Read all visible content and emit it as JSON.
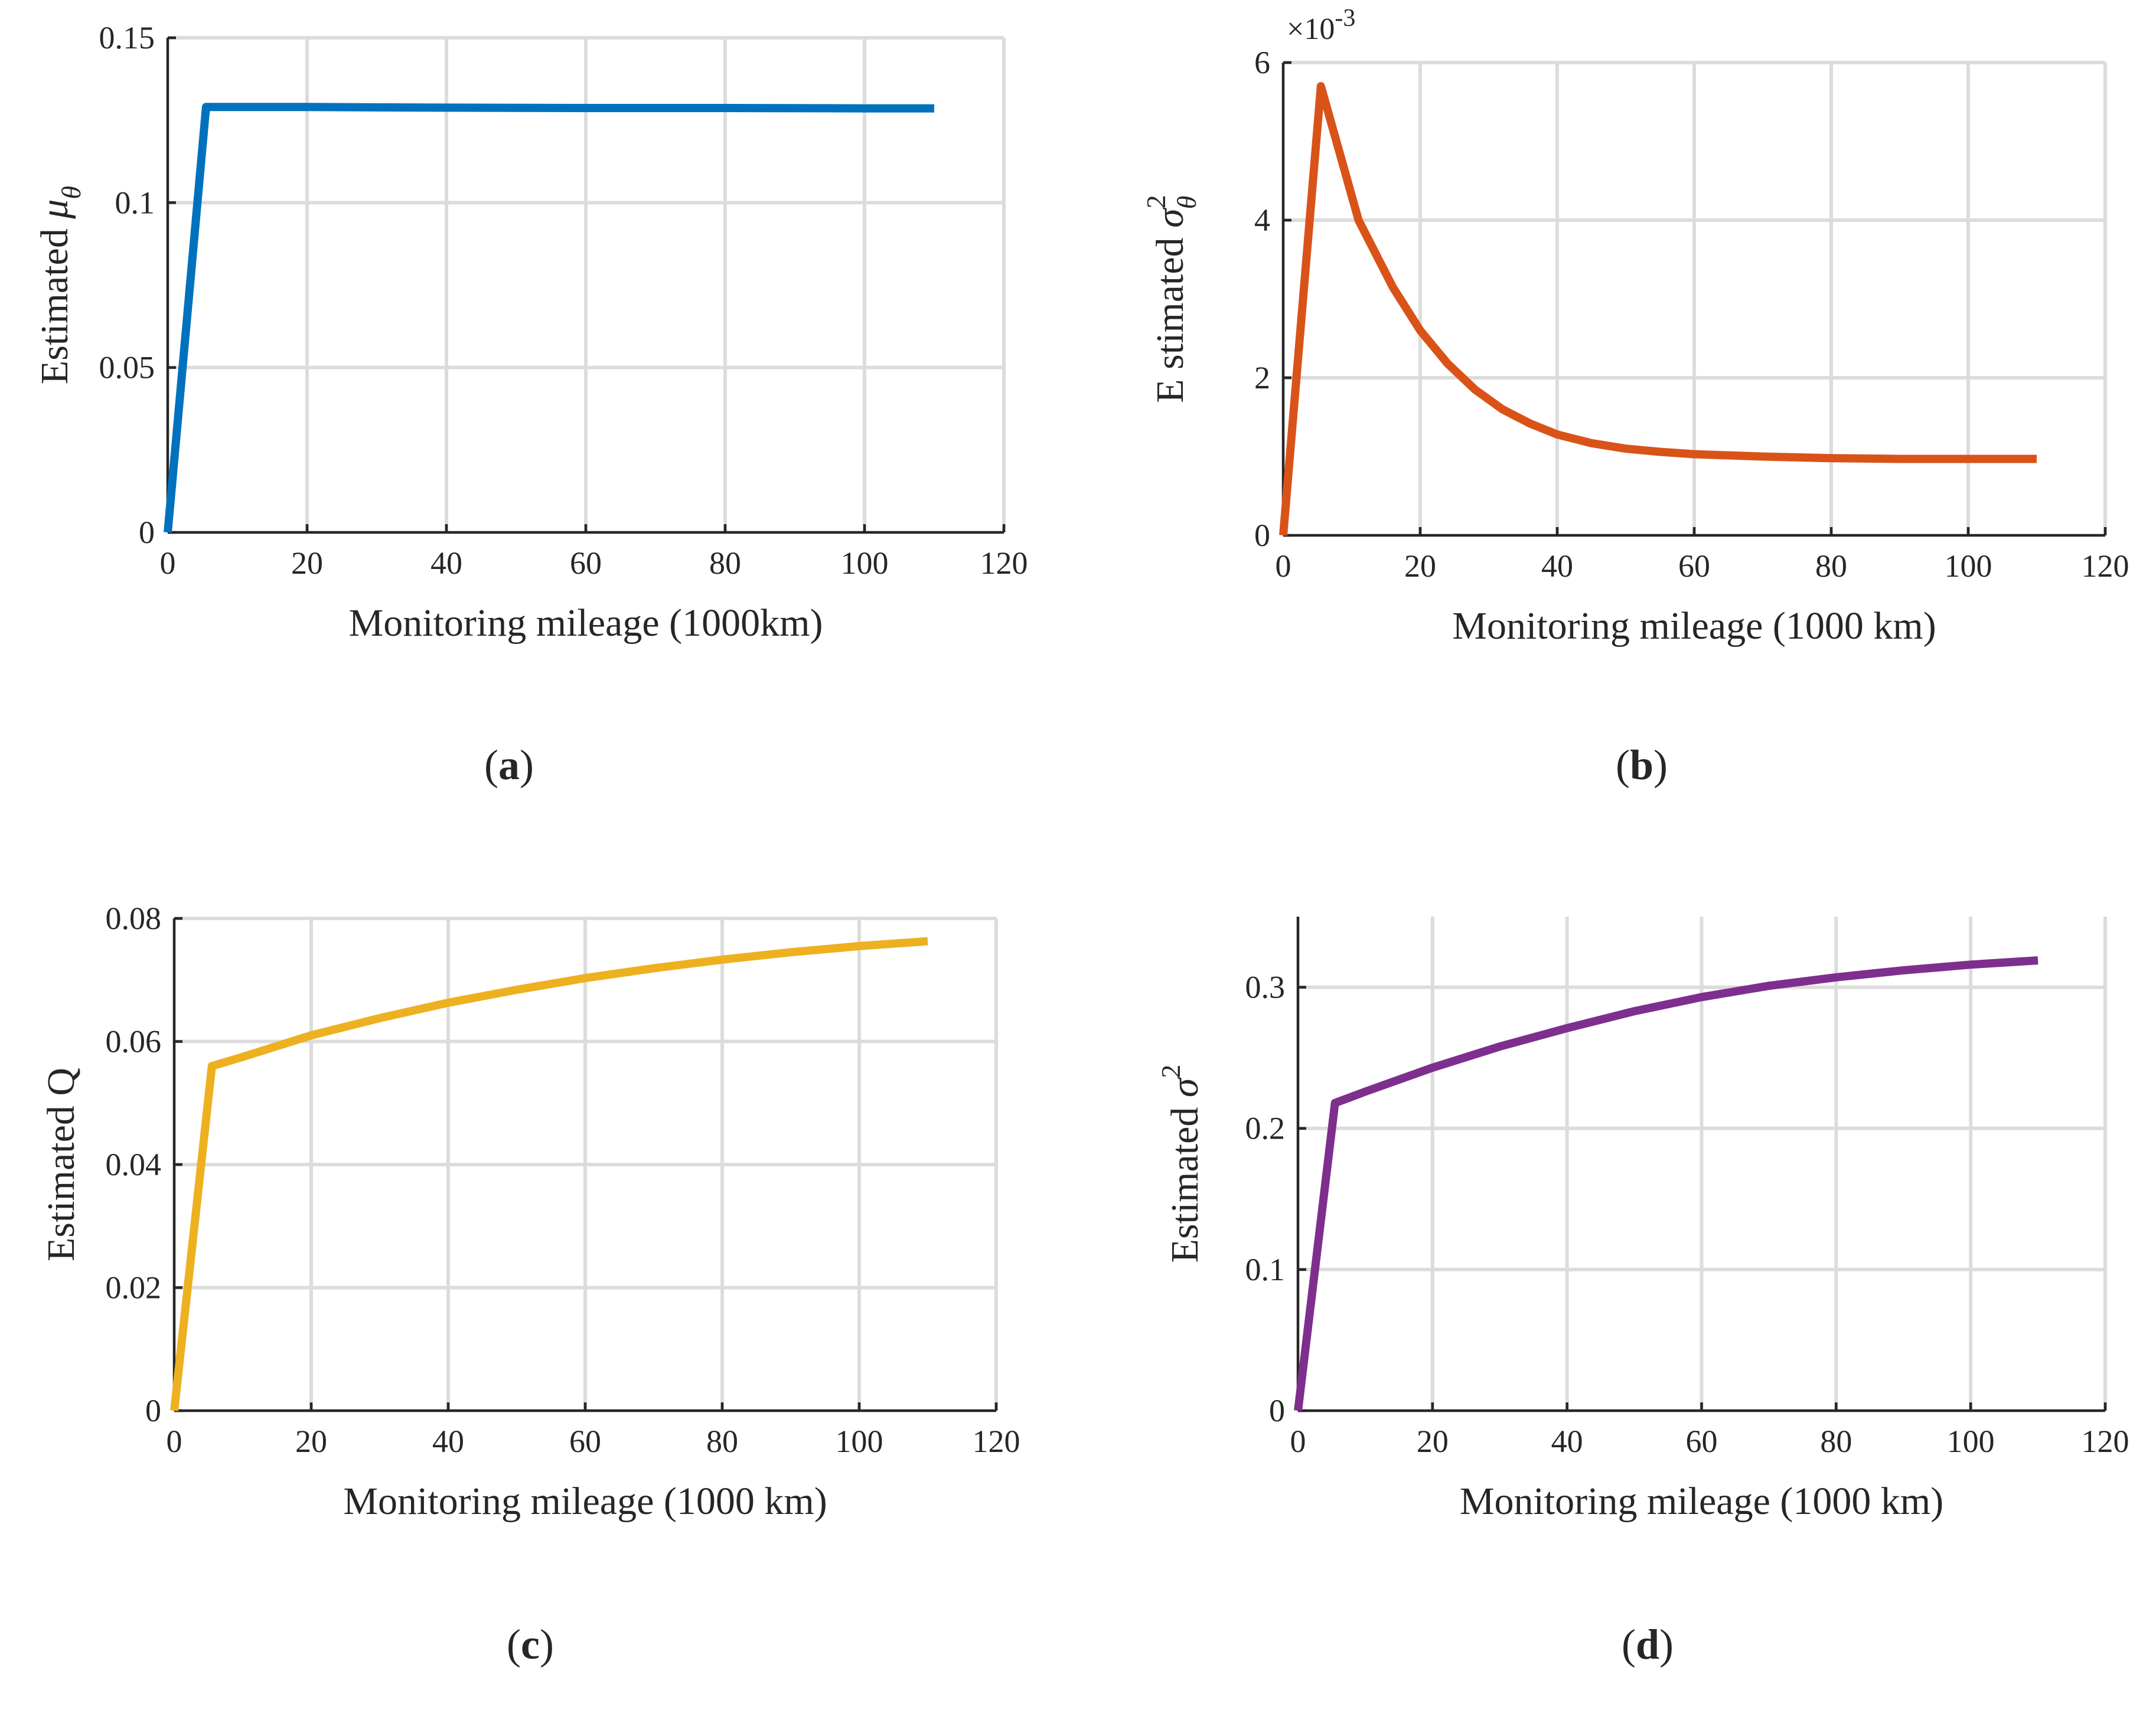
{
  "chart_data": [
    {
      "id": "a",
      "type": "line",
      "caption_letter": "a",
      "xlabel": "Monitoring mileage (1000km)",
      "ylabel_prefix": "Estimated ",
      "ylabel_symbol": "μ",
      "ylabel_sub": "θ",
      "ylabel_sup": "",
      "xlim": [
        0,
        120
      ],
      "ylim": [
        0,
        0.15
      ],
      "x_ticks": [
        "0",
        "20",
        "40",
        "60",
        "80",
        "100",
        "120"
      ],
      "y_ticks": [
        "0",
        "0.05",
        "0.1",
        "0.15"
      ],
      "x_tick_values": [
        0,
        20,
        40,
        60,
        80,
        100,
        120
      ],
      "y_tick_values": [
        0,
        0.05,
        0.1,
        0.15
      ],
      "exponent": "",
      "grid": true,
      "color": "#0072bd",
      "series": [
        {
          "name": "Estimated μθ",
          "x": [
            0,
            5.5,
            20,
            40,
            60,
            80,
            100,
            110
          ],
          "y": [
            0,
            0.129,
            0.129,
            0.1288,
            0.1287,
            0.1287,
            0.1286,
            0.1286
          ]
        }
      ]
    },
    {
      "id": "b",
      "type": "line",
      "caption_letter": "b",
      "xlabel": "Monitoring mileage (1000 km)",
      "ylabel_prefix": "E stimated ",
      "ylabel_symbol": "σ",
      "ylabel_sub": "θ",
      "ylabel_sup": "2",
      "xlim": [
        0,
        120
      ],
      "ylim": [
        0,
        6
      ],
      "x_ticks": [
        "0",
        "20",
        "40",
        "60",
        "80",
        "100",
        "120"
      ],
      "y_ticks": [
        "0",
        "2",
        "4",
        "6"
      ],
      "x_tick_values": [
        0,
        20,
        40,
        60,
        80,
        100,
        120
      ],
      "y_tick_values": [
        0,
        2,
        4,
        6
      ],
      "exponent_base": "×10",
      "exponent": "-3",
      "grid": true,
      "color": "#d95319",
      "series": [
        {
          "name": "Estimated σθ²",
          "x": [
            0,
            5.5,
            11,
            16,
            20,
            24,
            28,
            32,
            36,
            40,
            45,
            50,
            55,
            60,
            70,
            80,
            90,
            100,
            110
          ],
          "y": [
            0,
            5.7,
            4.0,
            3.15,
            2.6,
            2.18,
            1.85,
            1.6,
            1.42,
            1.28,
            1.17,
            1.1,
            1.06,
            1.03,
            1.0,
            0.98,
            0.97,
            0.97,
            0.97
          ]
        }
      ]
    },
    {
      "id": "c",
      "type": "line",
      "caption_letter": "c",
      "xlabel": "Monitoring mileage (1000 km)",
      "ylabel_prefix": "Estimated Q",
      "ylabel_symbol": "",
      "ylabel_sub": "",
      "ylabel_sup": "",
      "xlim": [
        0,
        120
      ],
      "ylim": [
        0,
        0.08
      ],
      "x_ticks": [
        "0",
        "20",
        "40",
        "60",
        "80",
        "100",
        "120"
      ],
      "y_ticks": [
        "0",
        "0.02",
        "0.04",
        "0.06",
        "0.08"
      ],
      "x_tick_values": [
        0,
        20,
        40,
        60,
        80,
        100,
        120
      ],
      "y_tick_values": [
        0,
        0.02,
        0.04,
        0.06,
        0.08
      ],
      "exponent": "",
      "grid": true,
      "color": "#edb120",
      "series": [
        {
          "name": "Estimated Q",
          "x": [
            0,
            5.5,
            10,
            20,
            30,
            40,
            50,
            60,
            70,
            80,
            90,
            100,
            110
          ],
          "y": [
            0,
            0.056,
            0.0575,
            0.061,
            0.0638,
            0.0663,
            0.0684,
            0.0703,
            0.0719,
            0.0733,
            0.0745,
            0.0755,
            0.0763
          ]
        }
      ]
    },
    {
      "id": "d",
      "type": "line",
      "caption_letter": "d",
      "xlabel": "Monitoring mileage (1000 km)",
      "ylabel_prefix": "Estimated ",
      "ylabel_symbol": "σ",
      "ylabel_sub": "",
      "ylabel_sup": "2",
      "xlim": [
        0,
        120
      ],
      "ylim": [
        0,
        0.35
      ],
      "x_ticks": [
        "0",
        "20",
        "40",
        "60",
        "80",
        "100",
        "120"
      ],
      "y_ticks": [
        "0",
        "0.1",
        "0.2",
        "0.3"
      ],
      "x_tick_values": [
        0,
        20,
        40,
        60,
        80,
        100,
        120
      ],
      "y_tick_values": [
        0,
        0.1,
        0.2,
        0.3
      ],
      "exponent": "",
      "grid": true,
      "color": "#7e2f8e",
      "series": [
        {
          "name": "Estimated σ²",
          "x": [
            0,
            5.5,
            10,
            20,
            30,
            40,
            50,
            60,
            70,
            80,
            90,
            100,
            110
          ],
          "y": [
            0,
            0.218,
            0.226,
            0.243,
            0.258,
            0.271,
            0.283,
            0.293,
            0.301,
            0.307,
            0.312,
            0.316,
            0.319
          ]
        }
      ]
    }
  ]
}
